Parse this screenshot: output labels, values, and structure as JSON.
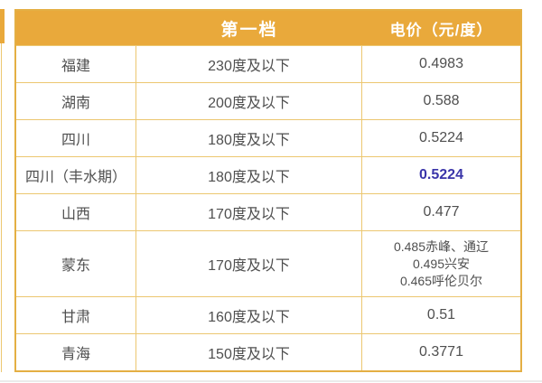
{
  "table": {
    "header": {
      "col_region": "",
      "col_tier": "第一档",
      "col_price": "电价（元/度）"
    },
    "rows": [
      {
        "region": "福建",
        "tier": "230度及以下",
        "price": "0.4983",
        "highlight": false
      },
      {
        "region": "湖南",
        "tier": "200度及以下",
        "price": "0.588",
        "highlight": false
      },
      {
        "region": "四川",
        "tier": "180度及以下",
        "price": "0.5224",
        "highlight": false
      },
      {
        "region": "四川（丰水期）",
        "tier": "180度及以下",
        "price": "0.5224",
        "highlight": true
      },
      {
        "region": "山西",
        "tier": "170度及以下",
        "price": "0.477",
        "highlight": false
      },
      {
        "region": "蒙东",
        "tier": "170度及以下",
        "price_lines": [
          "0.485赤峰、通辽",
          "0.495兴安",
          "0.465呼伦贝尔"
        ],
        "highlight": false
      },
      {
        "region": "甘肃",
        "tier": "160度及以下",
        "price": "0.51",
        "highlight": false
      },
      {
        "region": "青海",
        "tier": "150度及以下",
        "price": "0.3771",
        "highlight": false
      }
    ]
  },
  "colors": {
    "page_bg": "#ffffff",
    "header_bg": "#e9a93b",
    "outer_border": "#e4af44",
    "grid_line": "#ecc770",
    "text": "#4f4f4f",
    "highlight": "#3a35a9",
    "header_text": "#ffffff"
  },
  "chart_data": {
    "type": "table",
    "columns": [
      "",
      "第一档",
      "电价（元/度）"
    ],
    "rows": [
      [
        "福建",
        "230度及以下",
        "0.4983"
      ],
      [
        "湖南",
        "200度及以下",
        "0.588"
      ],
      [
        "四川",
        "180度及以下",
        "0.5224"
      ],
      [
        "四川（丰水期）",
        "180度及以下",
        "0.5224"
      ],
      [
        "山西",
        "170度及以下",
        "0.477"
      ],
      [
        "蒙东",
        "170度及以下",
        "0.485赤峰、通辽；0.495兴安；0.465呼伦贝尔"
      ],
      [
        "甘肃",
        "160度及以下",
        "0.51"
      ],
      [
        "青海",
        "150度及以下",
        "0.3771"
      ]
    ],
    "notes": {
      "highlighted_cell": "四川（丰水期） 电价 0.5224 为蓝色加粗",
      "tall_row": "蒙东行电价为三行文本"
    }
  }
}
